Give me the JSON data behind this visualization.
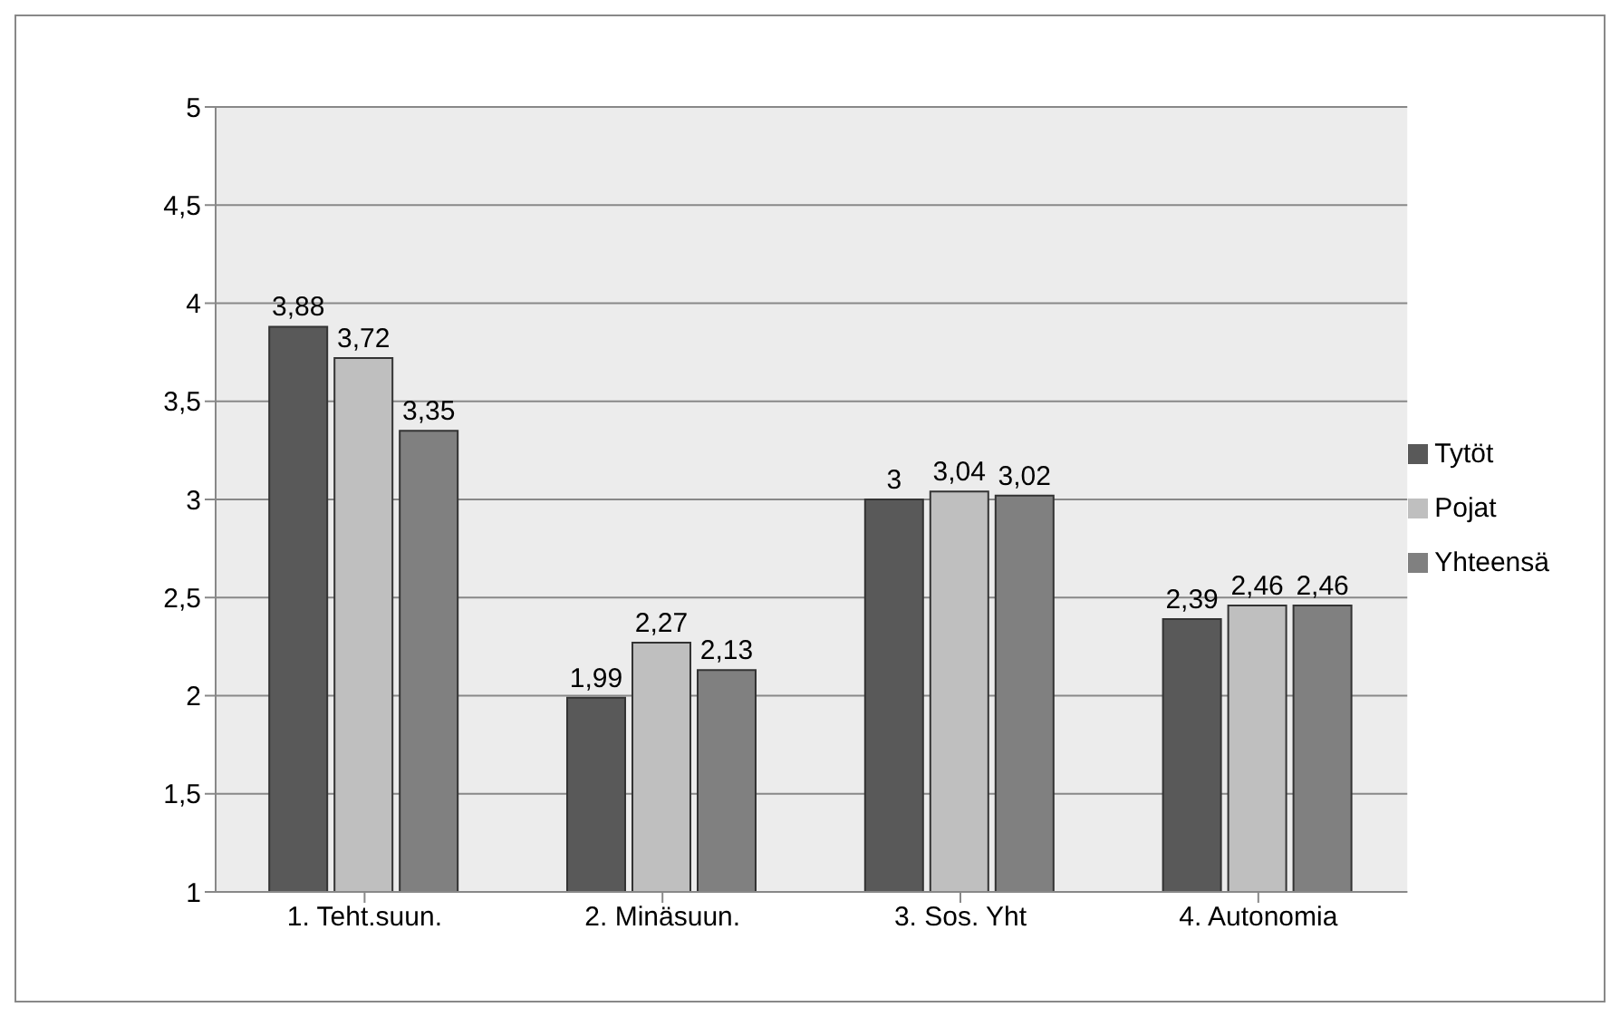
{
  "chart_data": {
    "type": "bar",
    "categories": [
      "1. Teht.suun.",
      "2. Minäsuun.",
      "3. Sos. Yht",
      "4. Autonomia"
    ],
    "series": [
      {
        "name": "Tytöt",
        "color": "#595959",
        "values": [
          3.88,
          1.99,
          3,
          2.39
        ],
        "value_labels": [
          "3,88",
          "1,99",
          "3",
          "2,39"
        ]
      },
      {
        "name": "Pojat",
        "color": "#bfbfbf",
        "values": [
          3.72,
          2.27,
          3.04,
          2.46
        ],
        "value_labels": [
          "3,72",
          "2,27",
          "3,04",
          "2,46"
        ]
      },
      {
        "name": "Yhteensä",
        "color": "#808080",
        "values": [
          3.35,
          2.13,
          3.02,
          2.46
        ],
        "value_labels": [
          "3,35",
          "2,13",
          "3,02",
          "2,46"
        ]
      }
    ],
    "ylim": [
      1,
      5
    ],
    "yticks": [
      1,
      {
        "value": 1.5,
        "label": "1,5"
      },
      2,
      {
        "value": 2.5,
        "label": "2,5"
      },
      3,
      {
        "value": 3.5,
        "label": "3,5"
      },
      4,
      {
        "value": 4.5,
        "label": "4,5"
      },
      5
    ],
    "grid": "y",
    "legend": "right"
  }
}
